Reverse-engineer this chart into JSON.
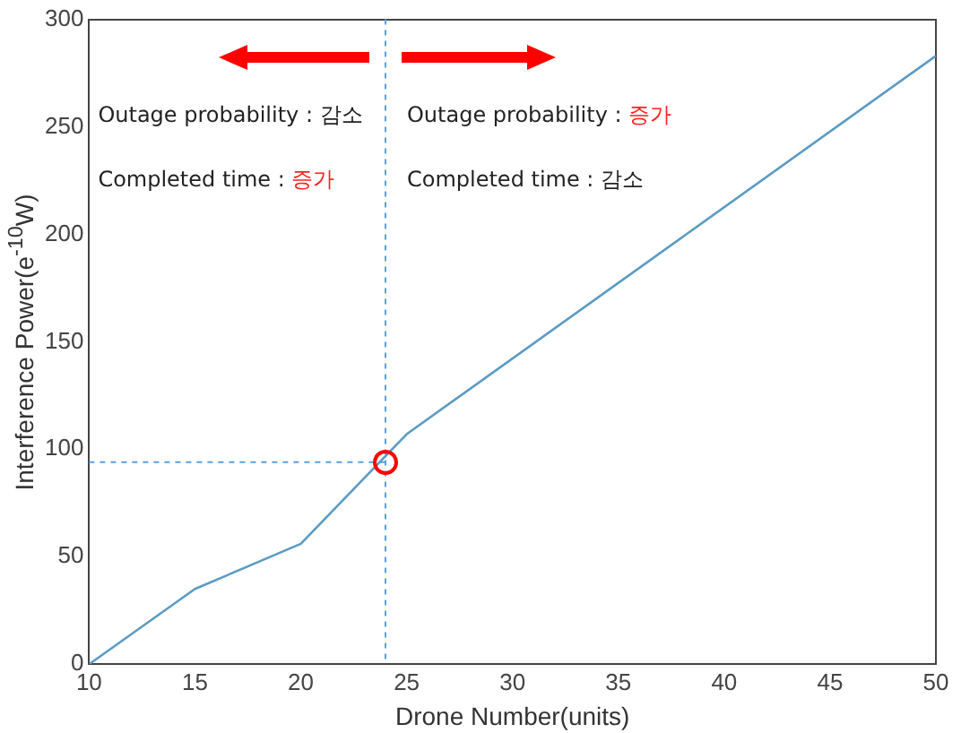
{
  "chart_data": {
    "type": "line",
    "xlabel": "Drone Number(units)",
    "ylabel": "Interference Power(e$^{-10}$W)",
    "x": [
      10,
      15,
      20,
      25,
      50
    ],
    "series": [
      {
        "color": "#5b9bc4",
        "values": [
          0,
          35,
          56,
          107,
          283
        ]
      }
    ],
    "xlim": [
      10,
      50
    ],
    "xticks": [
      10,
      15,
      20,
      25,
      30,
      35,
      40,
      45,
      50
    ],
    "ylim": [
      0,
      300
    ],
    "yticks": [
      0,
      50,
      100,
      150,
      200,
      250,
      300
    ],
    "grid": false,
    "legend": false,
    "marker": "none",
    "line_style": "solid",
    "ref_lines": [
      {
        "axis": "x",
        "value": 24,
        "color": "#5aa0e0",
        "line_style": "dashed"
      },
      {
        "axis": "y",
        "value": 94,
        "color": "#5aa0e0",
        "line_style": "dashed"
      }
    ],
    "annotations": [
      "Outage probability : 감소",
      "Outage probability : 증가",
      "Completed time : 증가",
      "Completed time : 감소"
    ]
  }
}
